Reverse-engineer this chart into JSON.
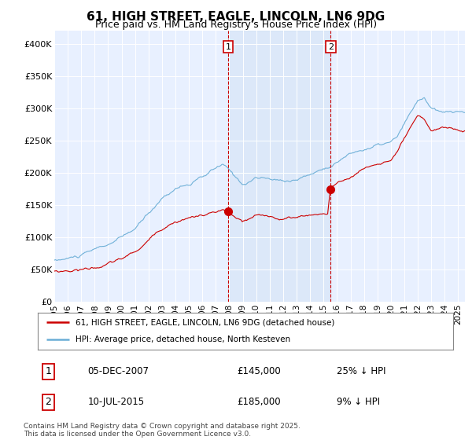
{
  "title": "61, HIGH STREET, EAGLE, LINCOLN, LN6 9DG",
  "subtitle": "Price paid vs. HM Land Registry's House Price Index (HPI)",
  "ylabel_ticks": [
    "£0",
    "£50K",
    "£100K",
    "£150K",
    "£200K",
    "£250K",
    "£300K",
    "£350K",
    "£400K"
  ],
  "ylim": [
    0,
    420000
  ],
  "xlim_start": 1995.0,
  "xlim_end": 2025.5,
  "hpi_color": "#6baed6",
  "hpi_fill_color": "#ddeeff",
  "price_color": "#cc0000",
  "sale1_date": "05-DEC-2007",
  "sale1_price": 145000,
  "sale1_label": "25% ↓ HPI",
  "sale2_date": "10-JUL-2015",
  "sale2_price": 185000,
  "sale2_label": "9% ↓ HPI",
  "sale1_x": 2007.92,
  "sale2_x": 2015.52,
  "legend_line1": "61, HIGH STREET, EAGLE, LINCOLN, LN6 9DG (detached house)",
  "legend_line2": "HPI: Average price, detached house, North Kesteven",
  "footnote": "Contains HM Land Registry data © Crown copyright and database right 2025.\nThis data is licensed under the Open Government Licence v3.0.",
  "box1_label": "1",
  "box2_label": "2",
  "background_color": "#ffffff",
  "plot_bg_color": "#e8f0ff"
}
